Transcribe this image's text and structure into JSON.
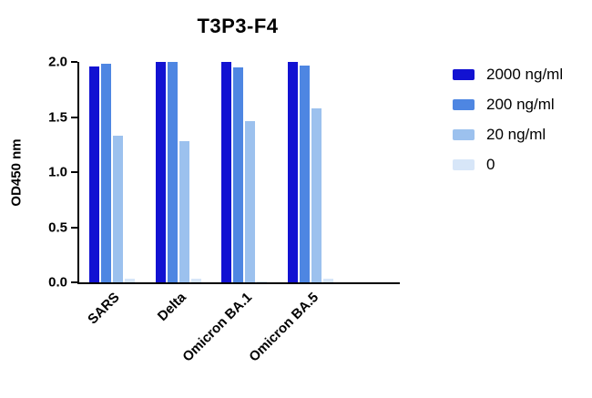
{
  "title": "T3P3-F4",
  "chart_data": {
    "type": "bar",
    "title": "T3P3-F4",
    "categories": [
      "SARS",
      "Delta",
      "Omicron BA.1",
      "Omicron BA.5"
    ],
    "series": [
      {
        "name": "2000 ng/ml",
        "color": "#1212d2",
        "values": [
          1.96,
          2.0,
          2.0,
          2.0
        ]
      },
      {
        "name": "200 ng/ml",
        "color": "#4e86e2",
        "values": [
          1.98,
          2.0,
          1.95,
          1.97
        ]
      },
      {
        "name": "20 ng/ml",
        "color": "#9cc1ee",
        "values": [
          1.33,
          1.28,
          1.46,
          1.58
        ]
      },
      {
        "name": "0",
        "color": "#d7e6f8",
        "values": [
          0.03,
          0.03,
          0.01,
          0.03
        ]
      }
    ],
    "xlabel": "",
    "ylabel": "OD450 nm",
    "ylim": [
      0,
      2.0
    ],
    "yticks": [
      0.0,
      0.5,
      1.0,
      1.5,
      2.0
    ],
    "ytick_labels": [
      "0.0",
      "0.5",
      "1.0",
      "1.5",
      "2.0"
    ],
    "grid": false,
    "legend_position": "right",
    "axis_color": "#000000",
    "background_color": "#ffffff"
  }
}
